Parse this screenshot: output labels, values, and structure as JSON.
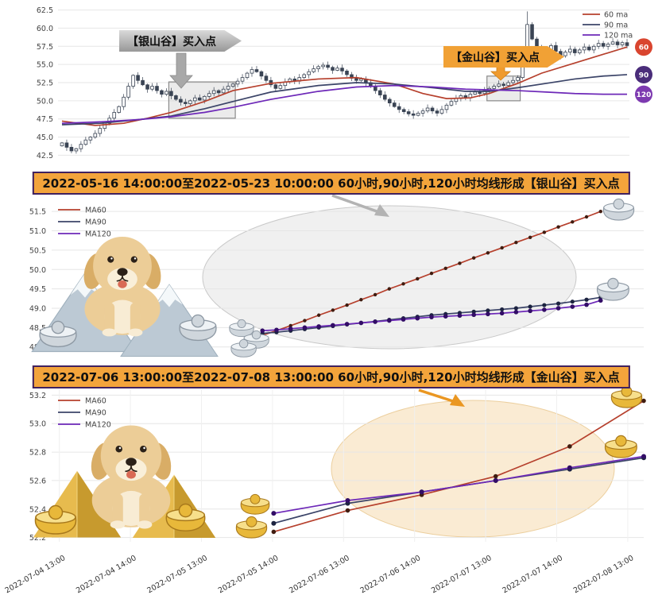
{
  "chart_data": [
    {
      "id": "main",
      "type": "candlestick",
      "ylim": [
        42.0,
        63.0
      ],
      "yticks": [
        62.5,
        60.0,
        57.5,
        55.0,
        52.5,
        50.0,
        47.5,
        45.0,
        42.5
      ],
      "legend": [
        {
          "label": "60 ma",
          "color": "#b6402d"
        },
        {
          "label": "90 ma",
          "color": "#3b4468"
        },
        {
          "label": "120 ma",
          "color": "#6d28b8"
        }
      ],
      "badges": [
        {
          "label": "60",
          "value": 57.4,
          "color": "#d9452f"
        },
        {
          "label": "90",
          "value": 53.6,
          "color": "#4a2d7a"
        },
        {
          "label": "120",
          "value": 50.9,
          "color": "#7d3ab0"
        }
      ],
      "annotations": [
        {
          "text": "【银山谷】买入点",
          "style": "silver"
        },
        {
          "text": "【金山谷】买入点",
          "style": "gold"
        }
      ],
      "closes": [
        44.2,
        43.6,
        43.1,
        43.4,
        44.0,
        44.6,
        45.0,
        45.5,
        46.2,
        46.9,
        47.6,
        48.4,
        49.2,
        50.5,
        52.0,
        53.5,
        52.8,
        52.2,
        51.6,
        52.0,
        51.4,
        50.9,
        51.3,
        50.7,
        50.2,
        49.8,
        49.6,
        50.0,
        50.4,
        50.1,
        50.6,
        51.0,
        51.4,
        51.1,
        51.6,
        52.0,
        52.3,
        52.7,
        53.2,
        53.8,
        54.3,
        54.0,
        53.4,
        52.8,
        52.2,
        51.7,
        52.1,
        52.6,
        53.0,
        52.7,
        53.2,
        53.6,
        54.0,
        54.4,
        54.7,
        54.9,
        54.6,
        54.2,
        54.5,
        54.1,
        53.6,
        53.1,
        52.8,
        53.0,
        52.5,
        52.0,
        51.4,
        50.8,
        50.2,
        49.7,
        49.2,
        48.8,
        48.5,
        48.2,
        48.0,
        48.3,
        48.6,
        49.0,
        48.6,
        48.3,
        48.8,
        49.4,
        49.9,
        50.3,
        50.7,
        50.4,
        50.9,
        51.2,
        51.0,
        51.4,
        51.7,
        52.0,
        52.3,
        52.1,
        52.5,
        52.8,
        53.2,
        55.5,
        60.5,
        58.5,
        57.2,
        56.4,
        57.0,
        57.6,
        56.8,
        56.2,
        56.7,
        57.1,
        56.6,
        57.0,
        57.4,
        57.0,
        57.5,
        57.9,
        57.5,
        57.8,
        58.1,
        57.7,
        58.0,
        57.6
      ],
      "spike_candle": {
        "index": 98,
        "high": 62.3,
        "low": 56.0
      },
      "highlight_boxes": [
        {
          "i0": 23,
          "i1": 36,
          "v0": 47.6,
          "v1": 52.6
        },
        {
          "i0": 90,
          "i1": 96,
          "v0": 50.0,
          "v1": 53.4
        }
      ],
      "ma60": {
        "x": [
          0,
          7,
          13,
          18,
          23,
          30,
          36,
          44,
          54,
          62,
          70,
          76,
          81,
          86,
          90,
          96,
          101,
          108,
          114,
          119
        ],
        "y": [
          47.2,
          46.6,
          46.9,
          47.6,
          48.4,
          49.9,
          51.4,
          52.4,
          53.0,
          53.2,
          52.3,
          51.0,
          50.3,
          50.4,
          51.0,
          52.4,
          53.8,
          55.2,
          56.4,
          57.4
        ]
      },
      "ma90": {
        "x": [
          0,
          8,
          16,
          23,
          30,
          36,
          44,
          54,
          62,
          70,
          78,
          85,
          90,
          96,
          102,
          108,
          114,
          119
        ],
        "y": [
          46.7,
          46.9,
          47.4,
          47.9,
          48.9,
          49.9,
          51.2,
          52.1,
          52.5,
          52.3,
          51.8,
          51.3,
          51.3,
          51.8,
          52.4,
          53.0,
          53.4,
          53.6
        ]
      },
      "ma120": {
        "x": [
          0,
          8,
          16,
          23,
          30,
          36,
          44,
          54,
          62,
          70,
          78,
          85,
          90,
          96,
          102,
          108,
          114,
          119
        ],
        "y": [
          46.9,
          47.1,
          47.4,
          47.8,
          48.4,
          49.1,
          50.2,
          51.3,
          51.9,
          52.1,
          51.9,
          51.6,
          51.5,
          51.4,
          51.2,
          51.0,
          50.9,
          50.9
        ]
      }
    },
    {
      "id": "silver-valley",
      "type": "line",
      "title": "2022-05-16 14:00:00至2022-05-23 10:00:00 60小时,90小时,120小时均线形成【银山谷】买入点",
      "ylim": [
        47.85,
        51.75
      ],
      "yticks": [
        51.5,
        51.0,
        50.5,
        50.0,
        49.5,
        49.0,
        48.5,
        48.0
      ],
      "series": [
        {
          "name": "MA60",
          "color": "#b6402d",
          "dot": "#401c10",
          "r": 2.2,
          "x0": 0.356,
          "dx": 0.0238,
          "values": [
            48.3,
            48.42,
            48.55,
            48.68,
            48.82,
            48.95,
            49.08,
            49.22,
            49.35,
            49.5,
            49.63,
            49.76,
            49.9,
            50.03,
            50.16,
            50.3,
            50.43,
            50.56,
            50.7,
            50.83,
            50.96,
            51.1,
            51.23,
            51.36,
            51.5
          ]
        },
        {
          "name": "MA90",
          "color": "#3b4468",
          "dot": "#1c2340",
          "r": 2.6,
          "x0": 0.356,
          "dx": 0.0238,
          "values": [
            48.35,
            48.38,
            48.42,
            48.46,
            48.5,
            48.54,
            48.58,
            48.62,
            48.66,
            48.7,
            48.74,
            48.78,
            48.82,
            48.85,
            48.88,
            48.91,
            48.94,
            48.97,
            49.0,
            49.04,
            49.08,
            49.12,
            49.17,
            49.22,
            49.28
          ]
        },
        {
          "name": "MA120",
          "color": "#6d28b8",
          "dot": "#320d66",
          "r": 2.8,
          "x0": 0.356,
          "dx": 0.0238,
          "values": [
            48.42,
            48.44,
            48.47,
            48.5,
            48.53,
            48.56,
            48.59,
            48.62,
            48.65,
            48.68,
            48.71,
            48.74,
            48.77,
            48.79,
            48.81,
            48.83,
            48.85,
            48.87,
            48.9,
            48.93,
            48.96,
            49.0,
            49.04,
            49.09,
            49.2
          ]
        }
      ]
    },
    {
      "id": "golden-valley",
      "type": "line",
      "title": "2022-07-06 13:00:00至2022-07-08 13:00:00 60小时,90小时,120小时均线形成【金山谷】买入点",
      "ylim": [
        52.17,
        53.23
      ],
      "yticks": [
        53.2,
        53.0,
        52.8,
        52.6,
        52.4,
        52.2
      ],
      "xticks": [
        "2022-07-04 13:00",
        "2022-07-04 14:00",
        "2022-07-05 13:00",
        "2022-07-05 14:00",
        "2022-07-06 13:00",
        "2022-07-06 14:00",
        "2022-07-07 13:00",
        "2022-07-07 14:00",
        "2022-07-08 13:00"
      ],
      "series": [
        {
          "name": "MA60",
          "color": "#b6402d",
          "dot": "#401c10",
          "r": 2.8,
          "x0": 0.375,
          "dx": 0.125,
          "values": [
            52.24,
            52.39,
            52.5,
            52.63,
            52.84,
            53.16
          ]
        },
        {
          "name": "MA90",
          "color": "#3b4468",
          "dot": "#1c2340",
          "r": 3.0,
          "x0": 0.375,
          "dx": 0.125,
          "values": [
            52.3,
            52.44,
            52.52,
            52.6,
            52.68,
            52.76
          ]
        },
        {
          "name": "MA120",
          "color": "#6d28b8",
          "dot": "#320d66",
          "r": 3.0,
          "x0": 0.375,
          "dx": 0.125,
          "values": [
            52.37,
            52.46,
            52.52,
            52.6,
            52.69,
            52.77
          ]
        }
      ]
    }
  ],
  "colors": {
    "banner_bg": "#f3a43b",
    "banner_border": "#3f2160",
    "candle": "#3a4454",
    "grid": "#e6e6e6"
  }
}
